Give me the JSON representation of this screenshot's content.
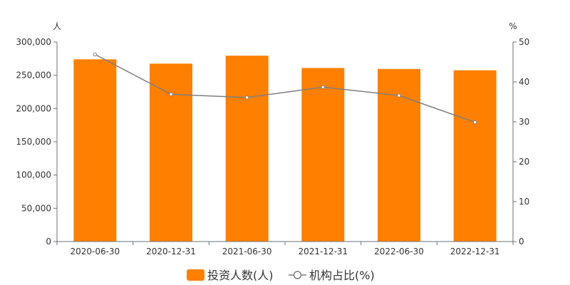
{
  "chart_data": {
    "type": "bar",
    "categories": [
      "2020-06-30",
      "2020-12-31",
      "2021-06-30",
      "2021-12-31",
      "2022-06-30",
      "2022-12-31"
    ],
    "series": [
      {
        "name": "投资人数(人)",
        "type": "bar",
        "axis": "left",
        "color": "#ff7f00",
        "values": [
          274000,
          267500,
          279500,
          261000,
          259500,
          257500
        ]
      },
      {
        "name": "机构占比(%)",
        "type": "line",
        "axis": "right",
        "color": "#7f7f7f",
        "marker": "hollow-circle",
        "values": [
          46.9,
          36.9,
          36.1,
          38.7,
          36.6,
          29.9
        ]
      }
    ],
    "left_axis": {
      "unit": "人",
      "range": [
        0,
        300000
      ],
      "ticks": [
        0,
        50000,
        100000,
        150000,
        200000,
        250000,
        300000
      ],
      "tick_labels": [
        "0",
        "50,000",
        "100,000",
        "150,000",
        "200,000",
        "250,000",
        "300,000"
      ]
    },
    "right_axis": {
      "unit": "%",
      "range": [
        0,
        50
      ],
      "ticks": [
        0,
        10,
        20,
        30,
        40,
        50
      ],
      "tick_labels": [
        "0",
        "10",
        "20",
        "30",
        "40",
        "50"
      ]
    },
    "grid": false,
    "legend": "bottom-center"
  }
}
